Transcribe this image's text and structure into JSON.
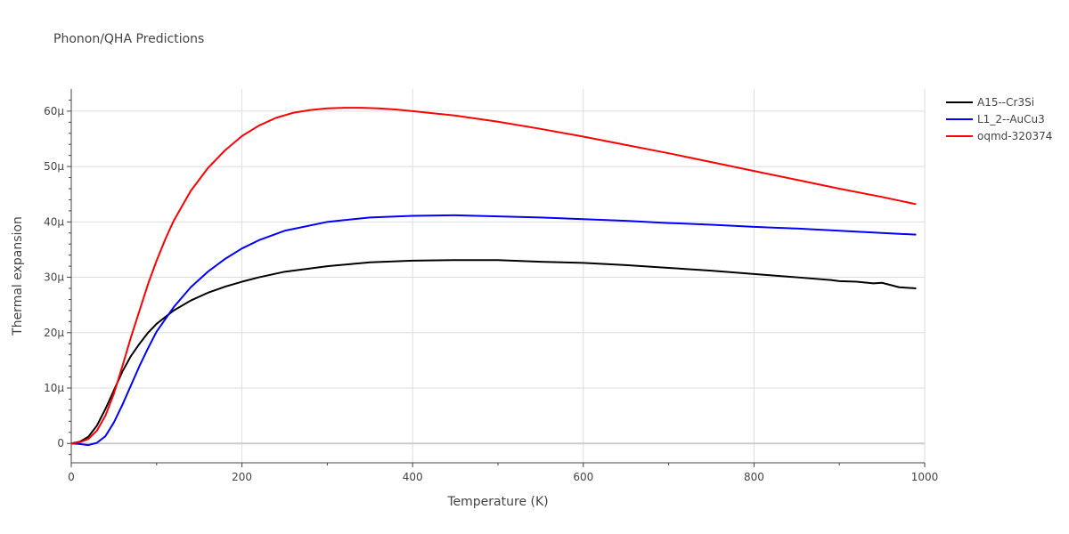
{
  "chart_data": {
    "type": "line",
    "title": "Phonon/QHA Predictions",
    "xlabel": "Temperature (K)",
    "ylabel": "Thermal expansion",
    "xlim": [
      0,
      1000
    ],
    "ylim": [
      -3.5,
      64
    ],
    "x_ticks": [
      0,
      200,
      400,
      600,
      800,
      1000
    ],
    "x_tick_labels": [
      "0",
      "200",
      "400",
      "600",
      "800",
      "1000"
    ],
    "y_ticks": [
      0,
      10,
      20,
      30,
      40,
      50,
      60
    ],
    "y_tick_labels": [
      "0",
      "10µ",
      "20µ",
      "30µ",
      "40µ",
      "50µ",
      "60µ"
    ],
    "grid": true,
    "legend_position": "top-right",
    "series": [
      {
        "name": "A15--Cr3Si",
        "color": "#000000",
        "x": [
          0,
          10,
          20,
          30,
          40,
          50,
          60,
          70,
          80,
          90,
          100,
          120,
          140,
          160,
          180,
          200,
          220,
          250,
          300,
          350,
          400,
          450,
          500,
          550,
          600,
          650,
          700,
          750,
          800,
          850,
          890,
          900,
          920,
          940,
          950,
          960,
          970,
          980,
          990
        ],
        "y": [
          0,
          0.3,
          1.2,
          3.2,
          6.2,
          9.6,
          13.0,
          15.8,
          18.0,
          20.0,
          21.6,
          24.0,
          25.8,
          27.2,
          28.3,
          29.2,
          30.0,
          31.0,
          32.0,
          32.7,
          33.0,
          33.1,
          33.1,
          32.8,
          32.6,
          32.2,
          31.7,
          31.2,
          30.6,
          30.0,
          29.5,
          29.3,
          29.2,
          28.9,
          29.0,
          28.6,
          28.2,
          28.1,
          28.0
        ]
      },
      {
        "name": "L1_2--AuCu3",
        "color": "#0000ff",
        "x": [
          0,
          10,
          20,
          30,
          40,
          50,
          60,
          70,
          80,
          90,
          100,
          120,
          140,
          160,
          180,
          200,
          220,
          250,
          300,
          350,
          400,
          450,
          500,
          550,
          600,
          650,
          700,
          750,
          800,
          850,
          900,
          950,
          990
        ],
        "y": [
          0,
          -0.1,
          -0.3,
          0.1,
          1.3,
          3.8,
          7.0,
          10.5,
          14.0,
          17.2,
          20.2,
          24.6,
          28.2,
          31.0,
          33.3,
          35.2,
          36.7,
          38.4,
          40.0,
          40.8,
          41.1,
          41.2,
          41.0,
          40.8,
          40.5,
          40.2,
          39.8,
          39.5,
          39.1,
          38.8,
          38.4,
          38.0,
          37.7
        ]
      },
      {
        "name": "oqmd-320374",
        "color": "#ff0000",
        "x": [
          0,
          10,
          20,
          30,
          40,
          50,
          60,
          70,
          80,
          90,
          100,
          110,
          120,
          140,
          160,
          180,
          200,
          220,
          240,
          260,
          280,
          300,
          320,
          340,
          360,
          380,
          400,
          450,
          500,
          550,
          600,
          650,
          700,
          750,
          800,
          850,
          900,
          950,
          990
        ],
        "y": [
          0,
          0.2,
          0.8,
          2.3,
          5.0,
          9.0,
          14.0,
          19.2,
          24.0,
          28.8,
          33.0,
          36.8,
          40.2,
          45.6,
          49.7,
          52.9,
          55.5,
          57.4,
          58.8,
          59.7,
          60.2,
          60.5,
          60.6,
          60.6,
          60.5,
          60.3,
          60.0,
          59.2,
          58.1,
          56.8,
          55.4,
          53.9,
          52.4,
          50.8,
          49.2,
          47.6,
          46.0,
          44.5,
          43.2
        ]
      }
    ]
  }
}
